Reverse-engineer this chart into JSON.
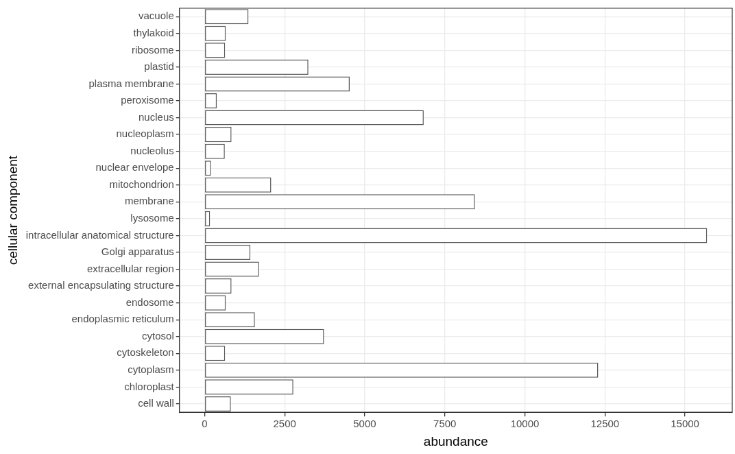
{
  "chart_data": {
    "type": "bar",
    "orientation": "horizontal",
    "xlabel": "abundance",
    "ylabel": "cellular component",
    "categories": [
      "vacuole",
      "thylakoid",
      "ribosome",
      "plastid",
      "plasma membrane",
      "peroxisome",
      "nucleus",
      "nucleoplasm",
      "nucleolus",
      "nuclear envelope",
      "mitochondrion",
      "membrane",
      "lysosome",
      "intracellular anatomical structure",
      "Golgi apparatus",
      "extracellular region",
      "external encapsulating structure",
      "endosome",
      "endoplasmic reticulum",
      "cytosol",
      "cytoskeleton",
      "cytoplasm",
      "chloroplast",
      "cell wall"
    ],
    "values": [
      1370,
      660,
      640,
      3240,
      4530,
      380,
      6840,
      840,
      630,
      200,
      2080,
      8440,
      170,
      15690,
      1430,
      1700,
      840,
      660,
      1570,
      3730,
      640,
      12290,
      2770,
      820
    ],
    "color": "#ffffff",
    "xlim": [
      -785,
      16475
    ],
    "xticks": [
      0,
      2500,
      5000,
      7500,
      10000,
      12500,
      15000
    ],
    "grid": true,
    "legend": false
  }
}
